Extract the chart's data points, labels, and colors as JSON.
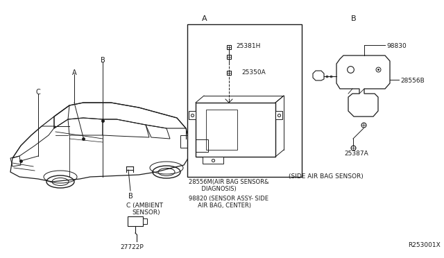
{
  "bg_color": "#ffffff",
  "line_color": "#1a1a1a",
  "text_color": "#1a1a1a",
  "diagram_id": "R253001X",
  "section_a_label": "A",
  "section_b_label": "B",
  "label_A": "A",
  "label_B": "B",
  "label_C": "C",
  "label_C_text": "C (AMBIENT\n  SENSOR)",
  "label_27722P": "27722P",
  "label_25381H": "25381H",
  "label_25350A": "25350A",
  "label_28556M_1": "28556M(AIR BAG SENSOR&",
  "label_28556M_2": "       DIAGNOSIS)",
  "label_98820_1": "98820 (SENSOR ASSY- SIDE",
  "label_98820_2": "     AIR BAG, CENTER)",
  "label_98830": "98830",
  "label_28556B": "28556B",
  "label_25387A": "25387A",
  "label_side": "(SIDE AIR BAG SENSOR)"
}
